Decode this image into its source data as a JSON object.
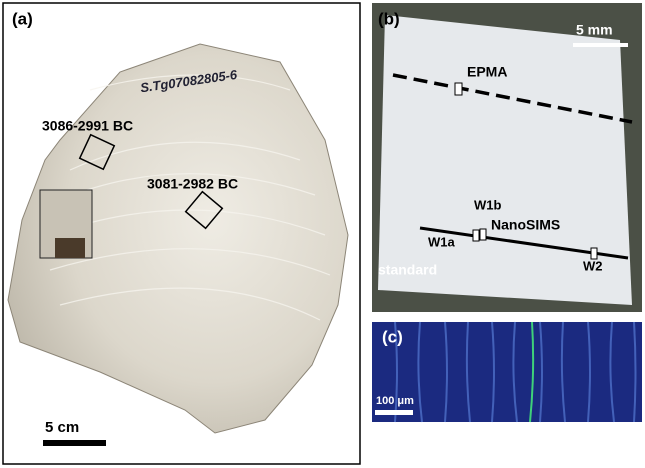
{
  "panels": {
    "a": {
      "label": "(a)",
      "specimen_id": "S.Tg07082805-6",
      "annotations": [
        "3086-2991 BC",
        "3081-2982 BC"
      ],
      "scale_bar": "5 cm"
    },
    "b": {
      "label": "(b)",
      "scale_bar": "5 mm",
      "annotations": [
        "EPMA",
        "W1b",
        "NanoSIMS",
        "W1a",
        "W2",
        "standard"
      ]
    },
    "c": {
      "label": "(c)",
      "scale_bar": "100 μm"
    }
  }
}
